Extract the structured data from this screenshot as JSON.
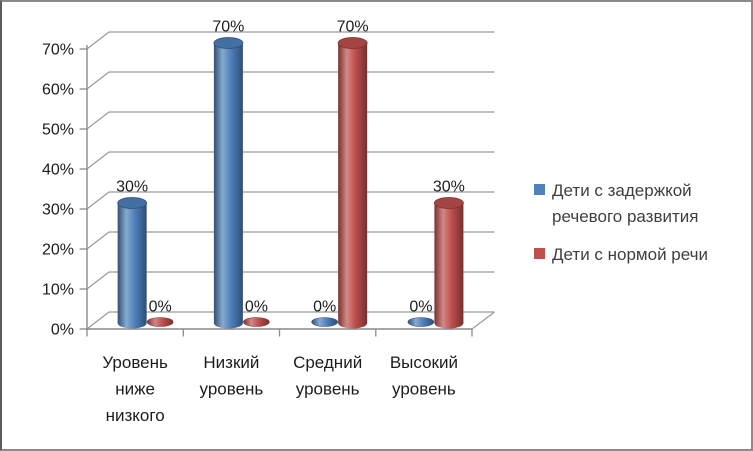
{
  "chart_data": {
    "type": "bar",
    "subtype": "3d-cylinder",
    "title": "",
    "xlabel": "",
    "ylabel": "",
    "categories": [
      "Уровень ниже низкого",
      "Низкий уровень",
      "Средний уровень",
      "Высокий уровень"
    ],
    "series": [
      {
        "name": "Дети с задержкой речевого развития",
        "color": "#4F81BD",
        "values": [
          30,
          70,
          0,
          0
        ],
        "data_labels": [
          "30%",
          "70%",
          "0%",
          "0%"
        ]
      },
      {
        "name": "Дети с нормой речи",
        "color": "#C0504D",
        "values": [
          0,
          0,
          70,
          30
        ],
        "data_labels": [
          "0%",
          "0%",
          "70%",
          "30%"
        ]
      }
    ],
    "value_suffix": "%",
    "ylim": [
      0,
      70
    ],
    "ytick_step": 10,
    "ytick_labels": [
      "0%",
      "10%",
      "20%",
      "30%",
      "40%",
      "50%",
      "60%",
      "70%"
    ],
    "grid": true,
    "legend_position": "right",
    "colors": {
      "text": "#1c1c1c",
      "legend_text": "#3f3f3f",
      "gridline": "#9a9a9a",
      "axis": "#8a8a8a"
    }
  }
}
